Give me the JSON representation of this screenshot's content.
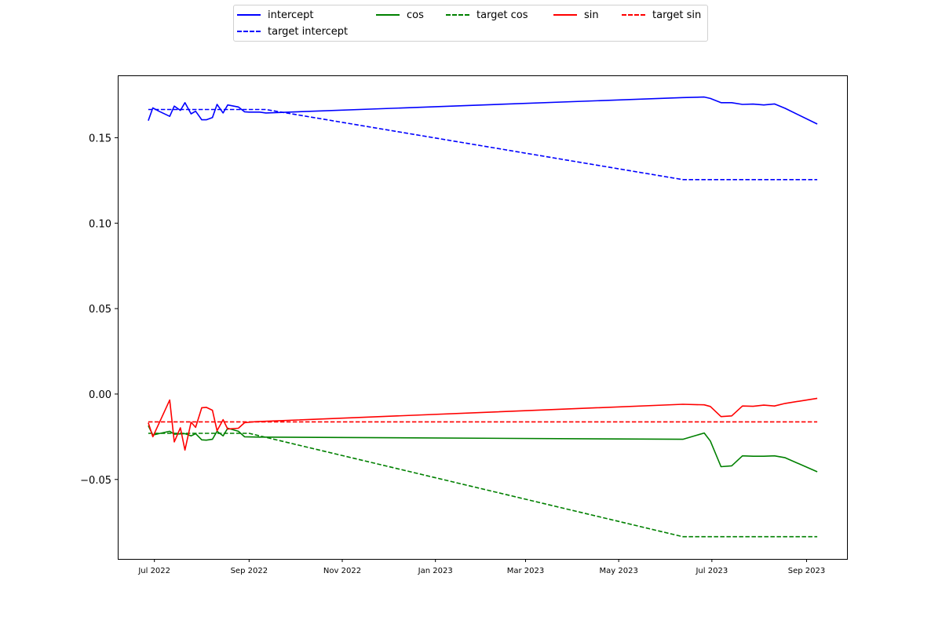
{
  "chart_data": {
    "type": "line",
    "title": "",
    "xlabel": "",
    "ylabel": "",
    "x_range": [
      "2022-06-07",
      "2023-09-28"
    ],
    "ylim": [
      -0.0965,
      0.1865
    ],
    "x_ticks": [
      {
        "date": "2022-07-01",
        "label": "Jul 2022"
      },
      {
        "date": "2022-09-01",
        "label": "Sep 2022"
      },
      {
        "date": "2022-11-01",
        "label": "Nov 2022"
      },
      {
        "date": "2023-01-01",
        "label": "Jan 2023"
      },
      {
        "date": "2023-03-01",
        "label": "Mar 2023"
      },
      {
        "date": "2023-05-01",
        "label": "May 2023"
      },
      {
        "date": "2023-07-01",
        "label": "Jul 2023"
      },
      {
        "date": "2023-09-01",
        "label": "Sep 2023"
      }
    ],
    "y_ticks": [
      {
        "value": 0.15,
        "label": "0.15"
      },
      {
        "value": 0.1,
        "label": "0.10"
      },
      {
        "value": 0.05,
        "label": "0.05"
      },
      {
        "value": 0.0,
        "label": "0.00"
      },
      {
        "value": -0.05,
        "label": "−0.05"
      }
    ],
    "grid": false,
    "legend_placement": "top-center, above plot",
    "series": [
      {
        "name": "intercept",
        "color": "#0000ff",
        "dash": false,
        "points": [
          [
            "2022-06-27",
            0.16
          ],
          [
            "2022-06-30",
            0.1675
          ],
          [
            "2022-07-04",
            0.1655
          ],
          [
            "2022-07-11",
            0.1625
          ],
          [
            "2022-07-14",
            0.1685
          ],
          [
            "2022-07-18",
            0.166
          ],
          [
            "2022-07-21",
            0.1705
          ],
          [
            "2022-07-25",
            0.164
          ],
          [
            "2022-07-28",
            0.1655
          ],
          [
            "2022-08-01",
            0.1605
          ],
          [
            "2022-08-04",
            0.1605
          ],
          [
            "2022-08-08",
            0.1618
          ],
          [
            "2022-08-11",
            0.1695
          ],
          [
            "2022-08-15",
            0.1645
          ],
          [
            "2022-08-18",
            0.1692
          ],
          [
            "2022-08-25",
            0.168
          ],
          [
            "2022-08-29",
            0.1652
          ],
          [
            "2022-09-01",
            0.165
          ],
          [
            "2022-09-08",
            0.165
          ],
          [
            "2022-09-12",
            0.1645
          ],
          [
            "2023-06-12",
            0.1735
          ],
          [
            "2023-06-26",
            0.1738
          ],
          [
            "2023-06-30",
            0.173
          ],
          [
            "2023-07-07",
            0.1705
          ],
          [
            "2023-07-14",
            0.1705
          ],
          [
            "2023-07-21",
            0.1695
          ],
          [
            "2023-07-28",
            0.1697
          ],
          [
            "2023-08-04",
            0.1692
          ],
          [
            "2023-08-11",
            0.1698
          ],
          [
            "2023-08-18",
            0.1672
          ],
          [
            "2023-09-08",
            0.158
          ]
        ]
      },
      {
        "name": "target intercept",
        "color": "#0000ff",
        "dash": true,
        "points": [
          [
            "2022-06-27",
            0.1665
          ],
          [
            "2022-09-12",
            0.1665
          ],
          [
            "2023-06-12",
            0.1255
          ],
          [
            "2023-09-08",
            0.1255
          ]
        ]
      },
      {
        "name": "cos",
        "color": "#008000",
        "dash": false,
        "points": [
          [
            "2022-06-27",
            -0.0185
          ],
          [
            "2022-06-30",
            -0.024
          ],
          [
            "2022-07-04",
            -0.0232
          ],
          [
            "2022-07-11",
            -0.0218
          ],
          [
            "2022-07-14",
            -0.0235
          ],
          [
            "2022-07-21",
            -0.0232
          ],
          [
            "2022-07-25",
            -0.0245
          ],
          [
            "2022-07-28",
            -0.0232
          ],
          [
            "2022-08-01",
            -0.0268
          ],
          [
            "2022-08-04",
            -0.027
          ],
          [
            "2022-08-08",
            -0.0265
          ],
          [
            "2022-08-11",
            -0.0218
          ],
          [
            "2022-08-15",
            -0.0245
          ],
          [
            "2022-08-18",
            -0.02
          ],
          [
            "2022-08-25",
            -0.0218
          ],
          [
            "2022-08-29",
            -0.025
          ],
          [
            "2022-09-08",
            -0.0252
          ],
          [
            "2023-06-12",
            -0.0265
          ],
          [
            "2023-06-26",
            -0.0228
          ],
          [
            "2023-06-30",
            -0.0275
          ],
          [
            "2023-07-07",
            -0.0425
          ],
          [
            "2023-07-14",
            -0.042
          ],
          [
            "2023-07-21",
            -0.0362
          ],
          [
            "2023-07-28",
            -0.0364
          ],
          [
            "2023-08-04",
            -0.0364
          ],
          [
            "2023-08-11",
            -0.0362
          ],
          [
            "2023-08-18",
            -0.0373
          ],
          [
            "2023-09-08",
            -0.0455
          ]
        ]
      },
      {
        "name": "target cos",
        "color": "#008000",
        "dash": true,
        "points": [
          [
            "2022-06-27",
            -0.023
          ],
          [
            "2022-09-01",
            -0.023
          ],
          [
            "2023-06-12",
            -0.0835
          ],
          [
            "2023-09-08",
            -0.0835
          ]
        ]
      },
      {
        "name": "sin",
        "color": "#ff0000",
        "dash": false,
        "points": [
          [
            "2022-06-27",
            -0.0168
          ],
          [
            "2022-06-30",
            -0.025
          ],
          [
            "2022-07-11",
            -0.0035
          ],
          [
            "2022-07-14",
            -0.028
          ],
          [
            "2022-07-18",
            -0.0198
          ],
          [
            "2022-07-21",
            -0.0328
          ],
          [
            "2022-07-25",
            -0.0165
          ],
          [
            "2022-07-28",
            -0.0195
          ],
          [
            "2022-08-01",
            -0.008
          ],
          [
            "2022-08-04",
            -0.0078
          ],
          [
            "2022-08-08",
            -0.0095
          ],
          [
            "2022-08-11",
            -0.0215
          ],
          [
            "2022-08-15",
            -0.015
          ],
          [
            "2022-08-18",
            -0.0205
          ],
          [
            "2022-08-25",
            -0.02
          ],
          [
            "2022-08-29",
            -0.0168
          ],
          [
            "2022-09-05",
            -0.0162
          ],
          [
            "2023-06-12",
            -0.006
          ],
          [
            "2023-06-26",
            -0.0063
          ],
          [
            "2023-06-30",
            -0.0073
          ],
          [
            "2023-07-07",
            -0.0132
          ],
          [
            "2023-07-14",
            -0.0128
          ],
          [
            "2023-07-21",
            -0.007
          ],
          [
            "2023-07-28",
            -0.0072
          ],
          [
            "2023-08-04",
            -0.0065
          ],
          [
            "2023-08-11",
            -0.007
          ],
          [
            "2023-08-18",
            -0.0055
          ],
          [
            "2023-09-08",
            -0.0025
          ]
        ]
      },
      {
        "name": "target sin",
        "color": "#ff0000",
        "dash": true,
        "points": [
          [
            "2022-06-27",
            -0.0163
          ],
          [
            "2023-09-08",
            -0.0163
          ]
        ]
      }
    ]
  },
  "legend": {
    "items": [
      {
        "label": "intercept",
        "color": "#0000ff",
        "dashed": false
      },
      {
        "label": "target intercept",
        "color": "#0000ff",
        "dashed": true
      },
      {
        "label": "cos",
        "color": "#008000",
        "dashed": false
      },
      {
        "label": "target cos",
        "color": "#008000",
        "dashed": true
      },
      {
        "label": "sin",
        "color": "#ff0000",
        "dashed": false
      },
      {
        "label": "target sin",
        "color": "#ff0000",
        "dashed": true
      }
    ]
  }
}
